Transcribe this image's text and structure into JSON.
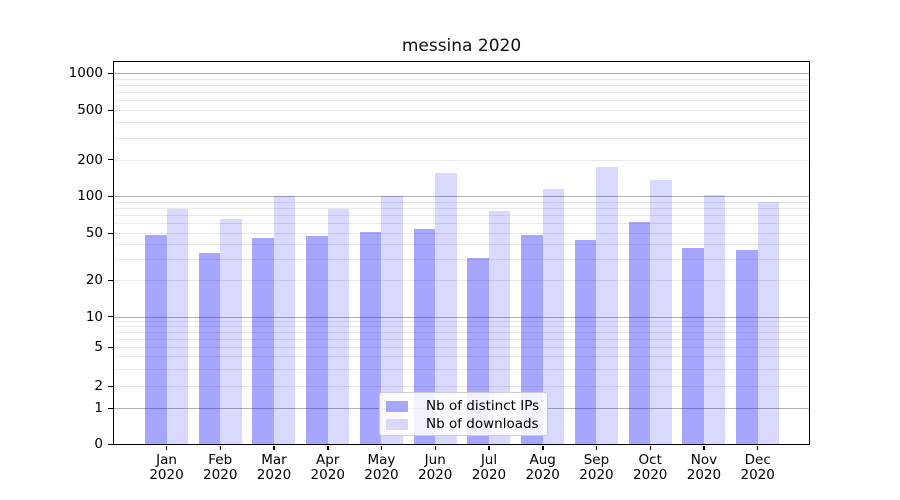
{
  "chart_data": {
    "type": "bar",
    "title": "messina 2020",
    "year_label": "2020",
    "months": [
      "Jan",
      "Feb",
      "Mar",
      "Apr",
      "May",
      "Jun",
      "Jul",
      "Aug",
      "Sep",
      "Oct",
      "Nov",
      "Dec"
    ],
    "series": [
      {
        "name": "Nb of distinct IPs",
        "color": "#a6a6ff",
        "values": [
          48,
          34,
          45,
          47,
          51,
          54,
          31,
          48,
          44,
          62,
          37,
          36
        ]
      },
      {
        "name": "Nb of downloads",
        "color": "#d9d9ff",
        "values": [
          78,
          65,
          100,
          78,
          100,
          155,
          76,
          115,
          175,
          135,
          102,
          90
        ]
      }
    ],
    "y_ticks": [
      0,
      1,
      2,
      5,
      10,
      20,
      50,
      100,
      200,
      500,
      1000
    ],
    "yscale": "symlog",
    "ylim": [
      0,
      1000
    ],
    "grid": true,
    "legend_position": "lower center",
    "axis_color": "#000000",
    "grid_major_color": "#b2b2b2",
    "grid_minor_color": "#e8e8e8"
  }
}
